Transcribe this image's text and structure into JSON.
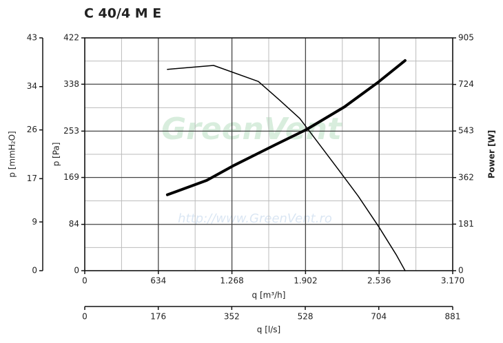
{
  "chart_data": {
    "type": "line",
    "title": "C 40/4 M E",
    "xlabel": "q [m³/h]",
    "ylabel": "p [Pa]",
    "y2label": "Power [W]",
    "y3label": "p [mmH₂O]",
    "x2label": "q [l/s]",
    "watermark": "GreenVent",
    "watermark_url": "http://www.GreenVent.ro",
    "xlim": [
      0,
      3170
    ],
    "xticks": [
      0,
      634,
      {
        "value": 1268,
        "label": "1.268"
      },
      {
        "value": 1902,
        "label": "1.902"
      },
      {
        "value": 2536,
        "label": "2.536"
      },
      {
        "value": 3170,
        "label": "3.170"
      }
    ],
    "x2lim": [
      0,
      881
    ],
    "x2ticks": [
      0,
      176,
      352,
      528,
      704,
      881
    ],
    "ylim": [
      0,
      422
    ],
    "yticks": [
      0,
      84,
      169,
      253,
      338,
      422
    ],
    "y2lim": [
      0,
      905
    ],
    "y2ticks": [
      0,
      181,
      362,
      543,
      724,
      905
    ],
    "y3lim": [
      0,
      43
    ],
    "y3ticks": [
      0,
      9,
      17,
      26,
      34,
      43
    ],
    "grid": true,
    "series": [
      {
        "color": "#000000",
        "axis": "y",
        "width": 1.5,
        "x": [
          712,
          1110,
          1496,
          1674,
          1852,
          2000,
          2179,
          2357,
          2535,
          2683,
          2760
        ],
        "values": [
          365,
          372,
          343,
          310,
          276,
          235,
          185,
          135,
          79,
          29,
          0
        ]
      },
      {
        "color": "#000000",
        "axis": "y2",
        "width": 4,
        "x": [
          712,
          1051,
          1288,
          1644,
          1911,
          2238,
          2523,
          2760
        ],
        "values": [
          295,
          351,
          410,
          490,
          549,
          637,
          731,
          817
        ]
      }
    ]
  }
}
